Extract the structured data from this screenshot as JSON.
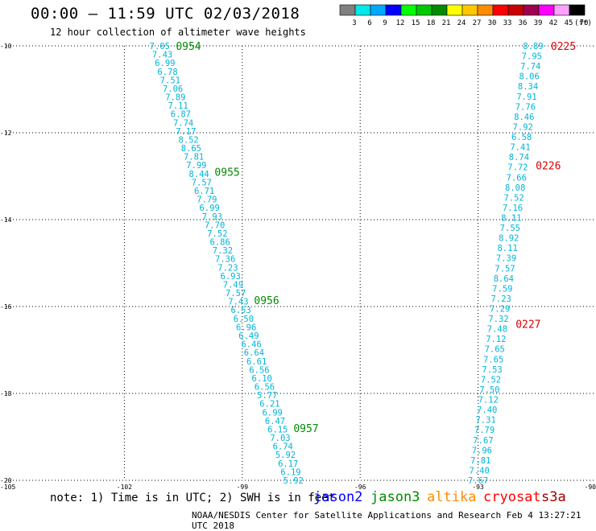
{
  "title": "00:00 – 11:59 UTC 02/03/2018",
  "subtitle": "12 hour collection of altimeter wave heights",
  "note": "note: 1) Time is in UTC; 2) SWH is in feet",
  "credit": "NOAA/NESDIS Center for Satellite Applications and Research   Feb  4 13:27:21 UTC 2018",
  "colorbar": {
    "unit": "(ft)",
    "ticks": [
      "3",
      "6",
      "9",
      "12",
      "15",
      "18",
      "21",
      "24",
      "27",
      "30",
      "33",
      "36",
      "39",
      "42",
      "45",
      "70"
    ],
    "colors": [
      "#808080",
      "#00e8e8",
      "#00a8ff",
      "#0000ff",
      "#00ff00",
      "#00c800",
      "#008c00",
      "#ffff00",
      "#ffc800",
      "#ff8c00",
      "#ff0000",
      "#c80000",
      "#a00050",
      "#ff00ff",
      "#ffa0ff",
      "#000000"
    ]
  },
  "legend": [
    {
      "label": "jason2",
      "color": "#0000ff"
    },
    {
      "label": "jason3",
      "color": "#008c00"
    },
    {
      "label": "altika",
      "color": "#ff8c00"
    },
    {
      "label": "cryosat",
      "color": "#ff0000"
    },
    {
      "label": "s3a",
      "color": "#a00000"
    }
  ],
  "chart_data": {
    "type": "scatter",
    "title": "00:00 – 11:59 UTC 02/03/2018",
    "xlim": [
      -105,
      -90
    ],
    "ylim": [
      -20,
      -10
    ],
    "xticks": [
      "-105",
      "-102",
      "-99",
      "-96",
      "-93",
      "-90"
    ],
    "yticks": [
      "-10",
      "-12",
      "-14",
      "-16",
      "-18",
      "-20"
    ],
    "grid": true,
    "value_color": "#00b4d8",
    "series": [
      {
        "name": "jason3",
        "color": "#008c00",
        "lon_start": -101.1,
        "lat_start": -10.0,
        "lon_end": -97.7,
        "lat_end": -20.0,
        "swh_ft": [
          "7.05",
          "7.43",
          "6.99",
          "6.78",
          "7.51",
          "7.06",
          "7.89",
          "7.11",
          "6.87",
          "7.74",
          "7.17",
          "8.52",
          "8.65",
          "7.81",
          "7.99",
          "8.44",
          "7.57",
          "6.71",
          "7.79",
          "6.99",
          "7.93",
          "7.70",
          "7.52",
          "6.86",
          "7.32",
          "7.36",
          "7.23",
          "6.93",
          "7.49",
          "7.57",
          "7.43",
          "6.53",
          "6.50",
          "6.96",
          "6.49",
          "6.46",
          "6.64",
          "6.61",
          "6.56",
          "6.10",
          "6.56",
          "5.77",
          "6.21",
          "6.99",
          "6.47",
          "6.15",
          "7.03",
          "6.74",
          "5.92",
          "6.17",
          "6.19",
          "5.92"
        ],
        "times": [
          {
            "label": "0954",
            "lat": -10.0
          },
          {
            "label": "0955",
            "lat": -12.9
          },
          {
            "label": "0956",
            "lat": -15.85
          },
          {
            "label": "0957",
            "lat": -18.8
          }
        ]
      },
      {
        "name": "cryosat",
        "color": "#dd0000",
        "lon_start": -91.6,
        "lat_start": -10.0,
        "lon_end": -93.0,
        "lat_end": -20.0,
        "swh_ft": [
          "8.89",
          "7.95",
          "7.74",
          "8.06",
          "8.34",
          "7.91",
          "7.76",
          "8.46",
          "7.92",
          "6.58",
          "7.41",
          "8.74",
          "7.72",
          "7.66",
          "8.08",
          "7.52",
          "7.16",
          "8.11",
          "7.55",
          "8.92",
          "8.11",
          "7.39",
          "7.57",
          "8.64",
          "7.59",
          "7.23",
          "7.29",
          "7.32",
          "7.48",
          "7.12",
          "7.65",
          "7.65",
          "7.53",
          "7.52",
          "7.50",
          "7.12",
          "7.40",
          "7.31",
          "7.79",
          "7.67",
          "7.96",
          "7.81",
          "7.40",
          "7.67"
        ],
        "times": [
          {
            "label": "0225",
            "lat": -10.0
          },
          {
            "label": "0226",
            "lat": -12.75
          },
          {
            "label": "0227",
            "lat": -16.4
          }
        ]
      }
    ]
  }
}
